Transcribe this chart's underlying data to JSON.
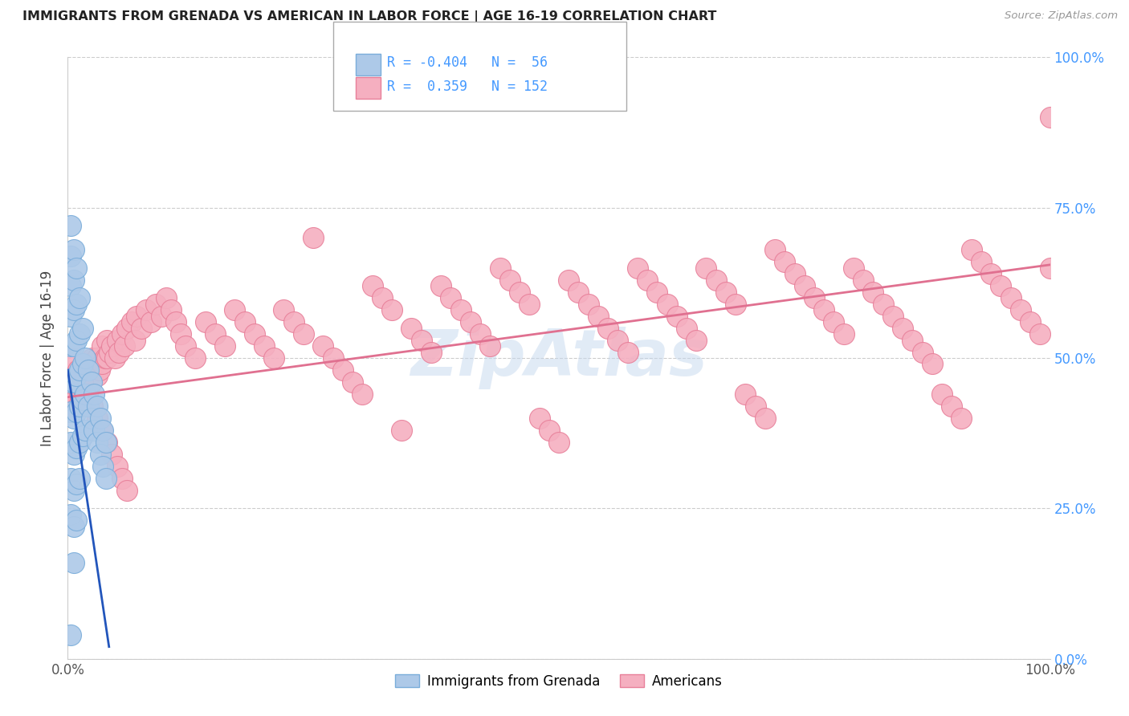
{
  "title": "IMMIGRANTS FROM GRENADA VS AMERICAN IN LABOR FORCE | AGE 16-19 CORRELATION CHART",
  "source": "Source: ZipAtlas.com",
  "ylabel": "In Labor Force | Age 16-19",
  "background_color": "#ffffff",
  "grid_color": "#cccccc",
  "blue_color": "#adc9e8",
  "blue_edge": "#7aadda",
  "pink_color": "#f5afc0",
  "pink_edge": "#e8809a",
  "blue_line_color": "#2255bb",
  "pink_line_color": "#e07090",
  "watermark_color": "#c5d8ee",
  "ytick_color": "#4499ff",
  "title_color": "#222222",
  "source_color": "#999999",
  "blue_r": -0.404,
  "blue_n": 56,
  "pink_r": 0.359,
  "pink_n": 152,
  "blue_x": [
    0.003,
    0.003,
    0.003,
    0.003,
    0.003,
    0.003,
    0.003,
    0.003,
    0.003,
    0.003,
    0.006,
    0.006,
    0.006,
    0.006,
    0.006,
    0.006,
    0.006,
    0.006,
    0.006,
    0.006,
    0.009,
    0.009,
    0.009,
    0.009,
    0.009,
    0.009,
    0.009,
    0.009,
    0.012,
    0.012,
    0.012,
    0.012,
    0.012,
    0.012,
    0.015,
    0.015,
    0.015,
    0.015,
    0.018,
    0.018,
    0.018,
    0.021,
    0.021,
    0.024,
    0.024,
    0.027,
    0.027,
    0.03,
    0.03,
    0.033,
    0.033,
    0.036,
    0.036,
    0.039,
    0.039,
    0.003
  ],
  "blue_y": [
    0.72,
    0.67,
    0.62,
    0.57,
    0.52,
    0.46,
    0.41,
    0.36,
    0.3,
    0.24,
    0.68,
    0.63,
    0.58,
    0.52,
    0.46,
    0.4,
    0.34,
    0.28,
    0.22,
    0.16,
    0.65,
    0.59,
    0.53,
    0.47,
    0.41,
    0.35,
    0.29,
    0.23,
    0.6,
    0.54,
    0.48,
    0.42,
    0.36,
    0.3,
    0.55,
    0.49,
    0.43,
    0.37,
    0.5,
    0.44,
    0.38,
    0.48,
    0.42,
    0.46,
    0.4,
    0.44,
    0.38,
    0.42,
    0.36,
    0.4,
    0.34,
    0.38,
    0.32,
    0.36,
    0.3,
    0.04
  ],
  "pink_x": [
    0.005,
    0.005,
    0.005,
    0.008,
    0.008,
    0.01,
    0.01,
    0.01,
    0.012,
    0.012,
    0.015,
    0.015,
    0.018,
    0.018,
    0.02,
    0.02,
    0.02,
    0.022,
    0.022,
    0.025,
    0.025,
    0.028,
    0.03,
    0.03,
    0.032,
    0.035,
    0.035,
    0.038,
    0.04,
    0.04,
    0.042,
    0.045,
    0.048,
    0.05,
    0.052,
    0.055,
    0.058,
    0.06,
    0.065,
    0.068,
    0.07,
    0.075,
    0.08,
    0.085,
    0.09,
    0.095,
    0.1,
    0.105,
    0.11,
    0.115,
    0.12,
    0.13,
    0.14,
    0.15,
    0.16,
    0.17,
    0.18,
    0.19,
    0.2,
    0.21,
    0.22,
    0.23,
    0.24,
    0.25,
    0.26,
    0.27,
    0.28,
    0.29,
    0.3,
    0.31,
    0.32,
    0.33,
    0.34,
    0.35,
    0.36,
    0.37,
    0.38,
    0.39,
    0.4,
    0.41,
    0.42,
    0.43,
    0.44,
    0.45,
    0.46,
    0.47,
    0.48,
    0.49,
    0.5,
    0.51,
    0.52,
    0.53,
    0.54,
    0.55,
    0.56,
    0.57,
    0.58,
    0.59,
    0.6,
    0.61,
    0.62,
    0.63,
    0.64,
    0.65,
    0.66,
    0.67,
    0.68,
    0.69,
    0.7,
    0.71,
    0.72,
    0.73,
    0.74,
    0.75,
    0.76,
    0.77,
    0.78,
    0.79,
    0.8,
    0.81,
    0.82,
    0.83,
    0.84,
    0.85,
    0.86,
    0.87,
    0.88,
    0.89,
    0.9,
    0.91,
    0.92,
    0.93,
    0.94,
    0.95,
    0.96,
    0.97,
    0.98,
    0.99,
    1.0,
    1.0,
    0.005,
    0.01,
    0.015,
    0.02,
    0.025,
    0.03,
    0.035,
    0.04,
    0.045,
    0.05,
    0.055,
    0.06
  ],
  "pink_y": [
    0.46,
    0.44,
    0.42,
    0.47,
    0.43,
    0.48,
    0.45,
    0.42,
    0.47,
    0.44,
    0.48,
    0.45,
    0.47,
    0.44,
    0.49,
    0.46,
    0.43,
    0.48,
    0.45,
    0.5,
    0.47,
    0.49,
    0.5,
    0.47,
    0.48,
    0.52,
    0.49,
    0.5,
    0.53,
    0.5,
    0.51,
    0.52,
    0.5,
    0.53,
    0.51,
    0.54,
    0.52,
    0.55,
    0.56,
    0.53,
    0.57,
    0.55,
    0.58,
    0.56,
    0.59,
    0.57,
    0.6,
    0.58,
    0.56,
    0.54,
    0.52,
    0.5,
    0.56,
    0.54,
    0.52,
    0.58,
    0.56,
    0.54,
    0.52,
    0.5,
    0.58,
    0.56,
    0.54,
    0.7,
    0.52,
    0.5,
    0.48,
    0.46,
    0.44,
    0.62,
    0.6,
    0.58,
    0.38,
    0.55,
    0.53,
    0.51,
    0.62,
    0.6,
    0.58,
    0.56,
    0.54,
    0.52,
    0.65,
    0.63,
    0.61,
    0.59,
    0.4,
    0.38,
    0.36,
    0.63,
    0.61,
    0.59,
    0.57,
    0.55,
    0.53,
    0.51,
    0.65,
    0.63,
    0.61,
    0.59,
    0.57,
    0.55,
    0.53,
    0.65,
    0.63,
    0.61,
    0.59,
    0.44,
    0.42,
    0.4,
    0.68,
    0.66,
    0.64,
    0.62,
    0.6,
    0.58,
    0.56,
    0.54,
    0.65,
    0.63,
    0.61,
    0.59,
    0.57,
    0.55,
    0.53,
    0.51,
    0.49,
    0.44,
    0.42,
    0.4,
    0.68,
    0.66,
    0.64,
    0.62,
    0.6,
    0.58,
    0.56,
    0.54,
    0.65,
    0.9,
    0.5,
    0.48,
    0.46,
    0.44,
    0.42,
    0.4,
    0.38,
    0.36,
    0.34,
    0.32,
    0.3,
    0.28
  ]
}
